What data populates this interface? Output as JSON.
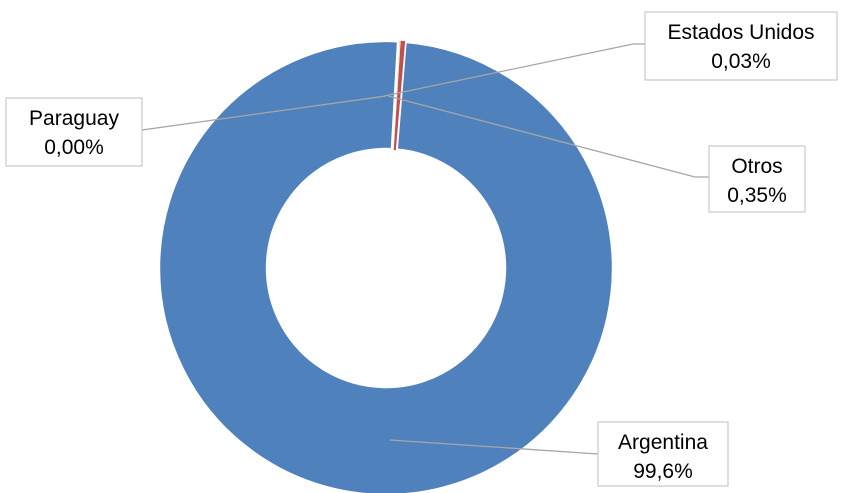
{
  "chart_data": {
    "type": "pie",
    "variant": "doughnut",
    "title": "",
    "slices": [
      {
        "category": "Argentina",
        "value": 99.6,
        "label": "99,6%",
        "color": "#4f81bd"
      },
      {
        "category": "Otros",
        "value": 0.35,
        "label": "0,35%",
        "color": "#c0504d"
      },
      {
        "category": "Estados Unidos",
        "value": 0.03,
        "label": "0,03%",
        "color": "#9bbb59"
      },
      {
        "category": "Paraguay",
        "value": 0.0,
        "label": "0,00%",
        "color": "#8064a2"
      }
    ],
    "legend": "none",
    "data_labels": "outside-with-leader-lines"
  }
}
